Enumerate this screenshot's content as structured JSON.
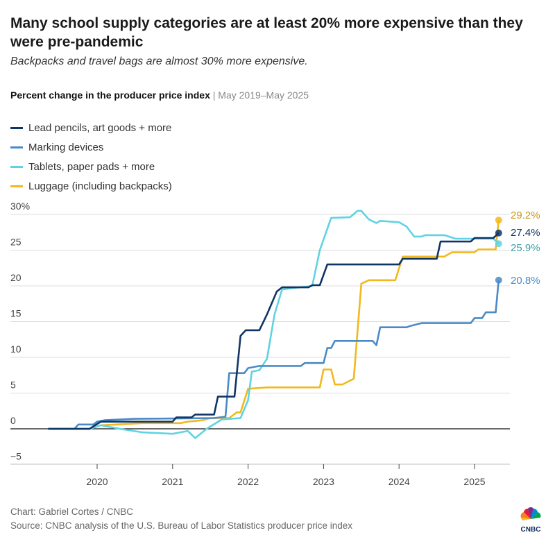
{
  "title": "Many school supply categories are at least 20% more expensive than they were pre-pandemic",
  "subtitle": "Backpacks and travel bags are almost 30% more expensive.",
  "chart_heading": "Percent change in the producer price index",
  "chart_heading_sep": " | ",
  "chart_period": "May 2019–May 2025",
  "footer": {
    "credit": "Chart: Gabriel Cortes / CNBC",
    "source": "Source: CNBC analysis of the U.S. Bureau of Labor Statistics producer price index",
    "logo_text": "CNBC"
  },
  "chart_data": {
    "type": "line",
    "xlabel": "",
    "ylabel": "",
    "xlim": [
      2019.1,
      2025.45
    ],
    "ylim": [
      -5,
      30
    ],
    "x_ticks": [
      2020,
      2021,
      2022,
      2023,
      2024,
      2025
    ],
    "x_tick_labels": [
      "2020",
      "2021",
      "2022",
      "2023",
      "2024",
      "2025"
    ],
    "y_ticks": [
      -5,
      0,
      5,
      10,
      15,
      20,
      25,
      30
    ],
    "y_tick_labels": [
      "−5",
      "0",
      "5",
      "10",
      "15",
      "20",
      "25",
      "30%"
    ],
    "grid": true,
    "legend_placement": "top-left",
    "series": [
      {
        "name": "Lead pencils, art goods + more",
        "color": "#0f3566",
        "label_color": "#0f3566",
        "end_label": "27.4%",
        "points": [
          [
            2019.35,
            0
          ],
          [
            2019.9,
            0
          ],
          [
            2020.05,
            1
          ],
          [
            2021.0,
            1
          ],
          [
            2021.05,
            1.6
          ],
          [
            2021.25,
            1.6
          ],
          [
            2021.3,
            2
          ],
          [
            2021.55,
            2
          ],
          [
            2021.6,
            4.5
          ],
          [
            2021.82,
            4.5
          ],
          [
            2021.9,
            13
          ],
          [
            2021.97,
            13.8
          ],
          [
            2022.15,
            13.8
          ],
          [
            2022.25,
            16
          ],
          [
            2022.38,
            19.2
          ],
          [
            2022.45,
            19.8
          ],
          [
            2022.8,
            19.8
          ],
          [
            2022.85,
            20.1
          ],
          [
            2022.95,
            20.1
          ],
          [
            2023.05,
            23
          ],
          [
            2024.0,
            23
          ],
          [
            2024.05,
            23.8
          ],
          [
            2024.5,
            23.8
          ],
          [
            2024.55,
            26.2
          ],
          [
            2024.95,
            26.2
          ],
          [
            2025.0,
            26.7
          ],
          [
            2025.25,
            26.7
          ],
          [
            2025.32,
            27.4
          ]
        ]
      },
      {
        "name": "Marking devices",
        "color": "#4a8ac6",
        "label_color": "#4a8ac6",
        "end_label": "20.8%",
        "points": [
          [
            2019.35,
            0
          ],
          [
            2019.7,
            0
          ],
          [
            2019.75,
            0.6
          ],
          [
            2019.95,
            0.6
          ],
          [
            2020.0,
            1
          ],
          [
            2020.1,
            1.2
          ],
          [
            2020.5,
            1.4
          ],
          [
            2021.55,
            1.5
          ],
          [
            2021.7,
            1.7
          ],
          [
            2021.75,
            7.8
          ],
          [
            2021.95,
            7.8
          ],
          [
            2022.0,
            8.5
          ],
          [
            2022.15,
            8.8
          ],
          [
            2022.7,
            8.8
          ],
          [
            2022.75,
            9.2
          ],
          [
            2023.0,
            9.2
          ],
          [
            2023.05,
            11.3
          ],
          [
            2023.1,
            11.3
          ],
          [
            2023.15,
            12.3
          ],
          [
            2023.65,
            12.3
          ],
          [
            2023.7,
            11.7
          ],
          [
            2023.75,
            14.2
          ],
          [
            2024.1,
            14.2
          ],
          [
            2024.15,
            14.4
          ],
          [
            2024.3,
            14.8
          ],
          [
            2024.95,
            14.8
          ],
          [
            2025.0,
            15.5
          ],
          [
            2025.1,
            15.5
          ],
          [
            2025.15,
            16.3
          ],
          [
            2025.28,
            16.3
          ],
          [
            2025.32,
            20.8
          ]
        ]
      },
      {
        "name": "Tablets, paper pads + more",
        "color": "#5fd3e3",
        "label_color": "#3a9ea8",
        "end_label": "25.9%",
        "points": [
          [
            2019.35,
            0
          ],
          [
            2019.9,
            0
          ],
          [
            2020.05,
            0.5
          ],
          [
            2020.3,
            0
          ],
          [
            2020.6,
            -0.5
          ],
          [
            2021.0,
            -0.7
          ],
          [
            2021.2,
            -0.3
          ],
          [
            2021.3,
            -1.3
          ],
          [
            2021.45,
            0
          ],
          [
            2021.65,
            1.3
          ],
          [
            2021.9,
            1.5
          ],
          [
            2022.0,
            4
          ],
          [
            2022.05,
            8
          ],
          [
            2022.15,
            8.2
          ],
          [
            2022.25,
            9.8
          ],
          [
            2022.35,
            16
          ],
          [
            2022.45,
            19.5
          ],
          [
            2022.85,
            20
          ],
          [
            2022.95,
            25
          ],
          [
            2023.1,
            29.5
          ],
          [
            2023.35,
            29.6
          ],
          [
            2023.45,
            30.5
          ],
          [
            2023.5,
            30.5
          ],
          [
            2023.6,
            29.3
          ],
          [
            2023.7,
            28.8
          ],
          [
            2023.75,
            29.1
          ],
          [
            2024.0,
            28.9
          ],
          [
            2024.1,
            28.3
          ],
          [
            2024.2,
            26.9
          ],
          [
            2024.3,
            26.9
          ],
          [
            2024.35,
            27.1
          ],
          [
            2024.6,
            27.1
          ],
          [
            2024.75,
            26.6
          ],
          [
            2025.25,
            26.6
          ],
          [
            2025.32,
            25.9
          ]
        ]
      },
      {
        "name": "Luggage (including backpacks)",
        "color": "#f2b81d",
        "label_color": "#c9961a",
        "end_label": "29.2%",
        "points": [
          [
            2019.35,
            0
          ],
          [
            2019.9,
            0
          ],
          [
            2020.05,
            0.5
          ],
          [
            2020.6,
            0.8
          ],
          [
            2021.1,
            0.8
          ],
          [
            2021.2,
            1.0
          ],
          [
            2021.4,
            1.2
          ],
          [
            2021.5,
            1.5
          ],
          [
            2021.75,
            1.5
          ],
          [
            2021.85,
            2.3
          ],
          [
            2021.9,
            2.3
          ],
          [
            2022.0,
            5.6
          ],
          [
            2022.25,
            5.8
          ],
          [
            2022.95,
            5.8
          ],
          [
            2023.0,
            8.3
          ],
          [
            2023.1,
            8.3
          ],
          [
            2023.15,
            6.2
          ],
          [
            2023.25,
            6.2
          ],
          [
            2023.4,
            7
          ],
          [
            2023.5,
            20.3
          ],
          [
            2023.6,
            20.8
          ],
          [
            2023.95,
            20.8
          ],
          [
            2024.05,
            24.1
          ],
          [
            2024.6,
            24.1
          ],
          [
            2024.7,
            24.7
          ],
          [
            2025.0,
            24.7
          ],
          [
            2025.05,
            25.1
          ],
          [
            2025.28,
            25.1
          ],
          [
            2025.32,
            29.2
          ]
        ]
      }
    ]
  }
}
